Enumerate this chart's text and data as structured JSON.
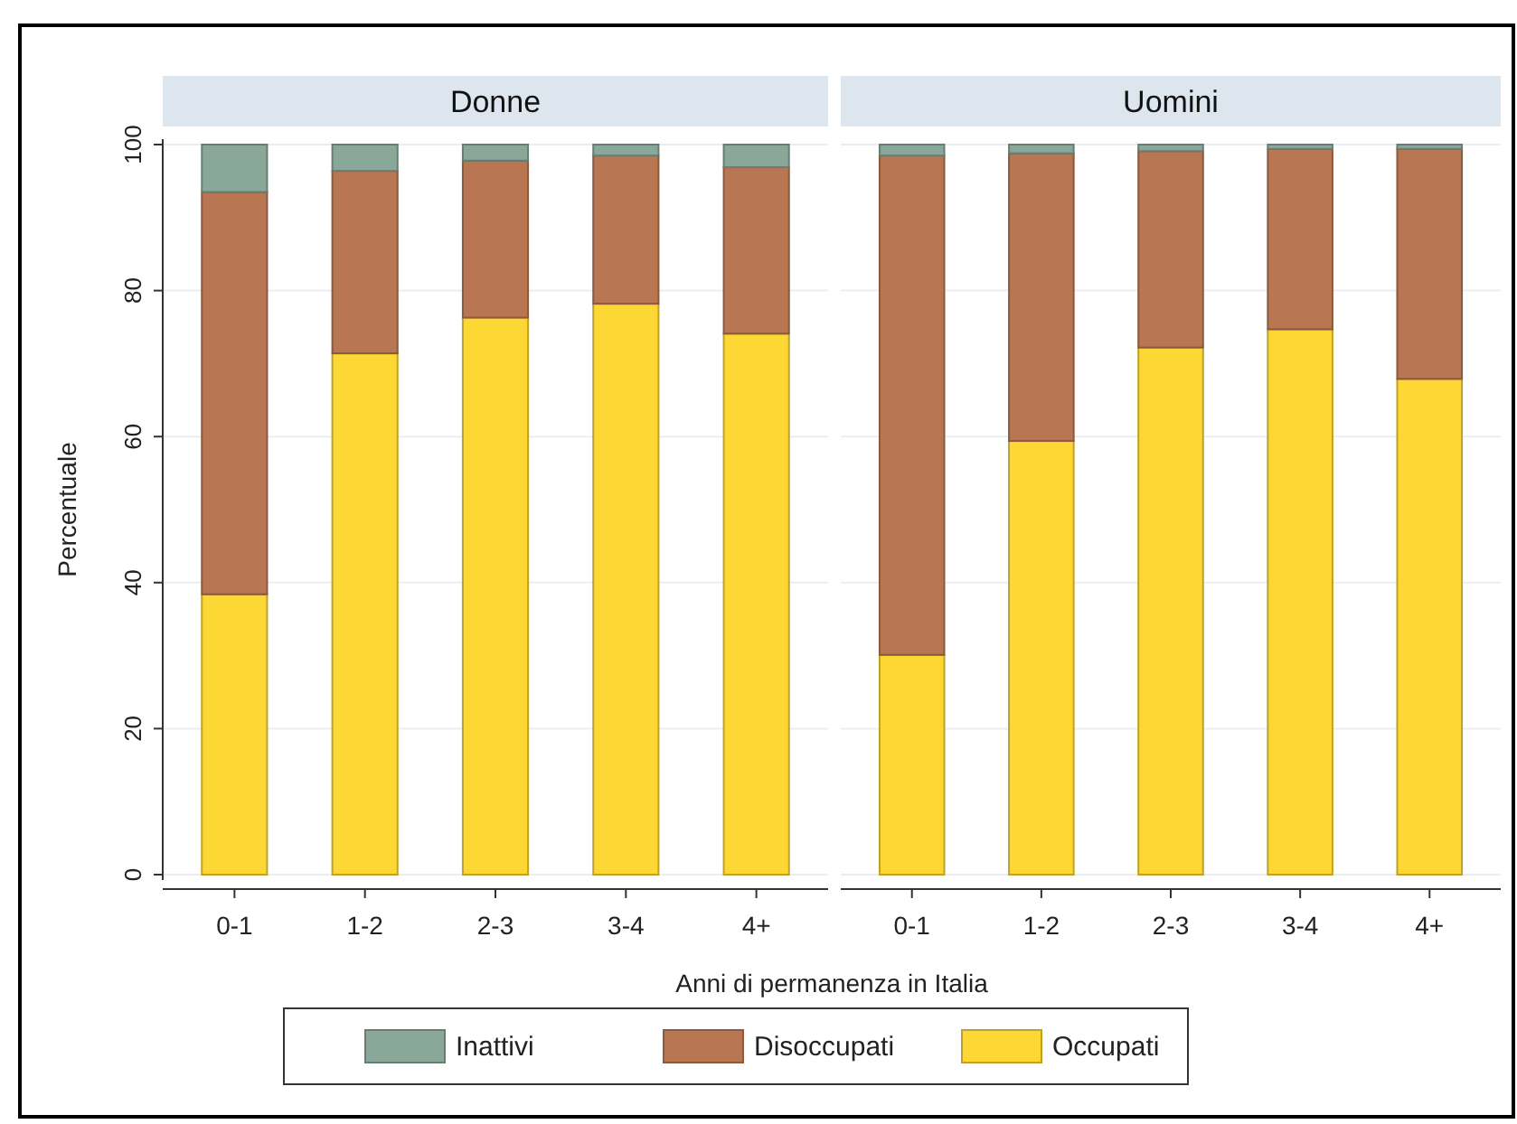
{
  "chart_data": [
    {
      "type": "bar",
      "stacked": true,
      "title": "Donne",
      "xlabel": "Anni di permanenza in Italia",
      "ylabel": "Percentuale",
      "categories": [
        "0-1",
        "1-2",
        "2-3",
        "3-4",
        "4+"
      ],
      "ylim": [
        0,
        100
      ],
      "yticks": [
        0,
        20,
        40,
        60,
        80,
        100
      ],
      "grid": "y",
      "legend": "bottom",
      "series": [
        {
          "name": "Occupati",
          "color": "#fdd835",
          "values": [
            38.4,
            71.4,
            76.3,
            78.2,
            74.1
          ]
        },
        {
          "name": "Disoccupati",
          "color": "#b87652",
          "values": [
            55.1,
            25.0,
            21.5,
            20.3,
            22.8
          ]
        },
        {
          "name": "Inattivi",
          "color": "#8aa89a",
          "values": [
            6.5,
            3.6,
            2.2,
            1.5,
            3.1
          ]
        }
      ]
    },
    {
      "type": "bar",
      "stacked": true,
      "title": "Uomini",
      "categories": [
        "0-1",
        "1-2",
        "2-3",
        "3-4",
        "4+"
      ],
      "ylim": [
        0,
        100
      ],
      "yticks": [
        0,
        20,
        40,
        60,
        80,
        100
      ],
      "grid": "y",
      "tick_labels": "x",
      "series": [
        {
          "color": "#fdd835",
          "values": [
            30.1,
            59.4,
            72.2,
            74.7,
            67.9
          ]
        },
        {
          "color": "#b87652",
          "values": [
            68.4,
            39.4,
            26.9,
            24.7,
            31.5
          ]
        },
        {
          "color": "#8aa89a",
          "values": [
            1.5,
            1.2,
            0.9,
            0.6,
            0.6
          ]
        }
      ]
    }
  ]
}
